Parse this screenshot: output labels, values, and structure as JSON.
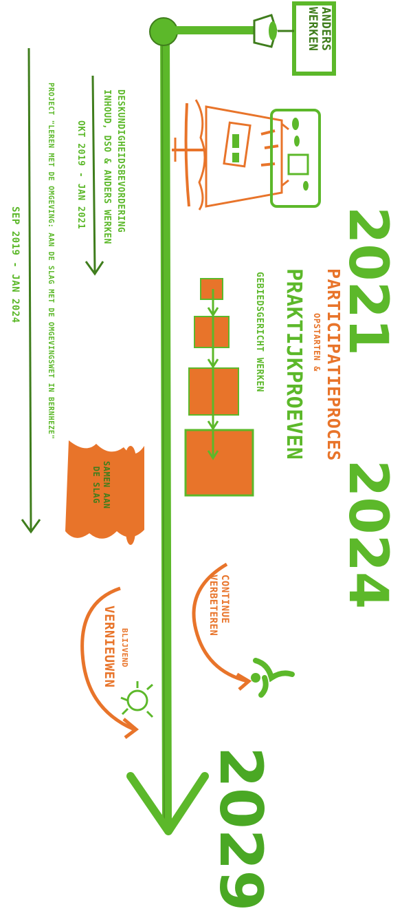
{
  "signpost": {
    "line1": "ANDERS",
    "line2": "WERKEN"
  },
  "years": {
    "y2021": "2021",
    "y2024": "2024",
    "y2029": "2029"
  },
  "projects": {
    "p1_title_line1": "DESKUNDIGHEIDSBEVORDERING",
    "p1_title_line2": "INHOUD, DSO & ANDERS WERKEN",
    "p1_period": "OKT 2019 - JAN 2021",
    "p2_title": "PROJECT \"LEREN MET DE OMGEVING: AAN DE SLAG MET DE OMGEVINGSWET IN BERNHEZE\"",
    "p2_period": "SEP 2019 - JAN 2024"
  },
  "milestones": {
    "participatie": "PARTICIPATIEPROCES",
    "opstarten": "OPSTARTEN &",
    "praktijk": "PRAKTIJKPROEVEN",
    "gebied": "GEBIEDSGERICHT WERKEN",
    "samen_line1": "SAMEN AAN",
    "samen_line2": "DE SLAG",
    "continue_line1": "CONTINUE",
    "continue_line2": "VERBETEREN",
    "blijvend": "BLIJVEND",
    "vernieuwen": "VERNIEUWEN"
  },
  "colors": {
    "green": "#5cb82a",
    "dark_green": "#3f7d1c",
    "orange": "#e8742a"
  }
}
